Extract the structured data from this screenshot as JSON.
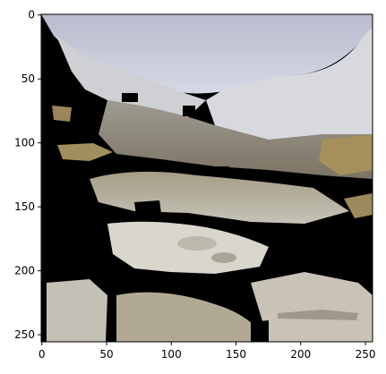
{
  "figure": {
    "image_description": "",
    "x_axis": {
      "ticks": [
        "0",
        "50",
        "100",
        "150",
        "200",
        "250"
      ],
      "tick_values": [
        0,
        50,
        100,
        150,
        200,
        250
      ],
      "range": [
        -0.5,
        255.5
      ]
    },
    "y_axis": {
      "ticks": [
        "0",
        "50",
        "100",
        "150",
        "200",
        "250"
      ],
      "tick_values": [
        0,
        50,
        100,
        150,
        200,
        250
      ],
      "range": [
        -0.5,
        255.5
      ],
      "inverted": true
    },
    "colors": {
      "sky": "#c9ccdc",
      "snow": "#e4e6ee",
      "rock": "#8b8472",
      "grass": "#a28e5c",
      "water": "#b7b4a6",
      "mask": "#000000",
      "frame": "#000000"
    }
  },
  "chart_data": {
    "type": "heatmap",
    "title": "",
    "xlabel": "",
    "ylabel": "",
    "xlim": [
      -0.5,
      255.5
    ],
    "ylim": [
      255.5,
      -0.5
    ],
    "x_ticks": [
      0,
      50,
      100,
      150,
      200,
      250
    ],
    "y_ticks": [
      0,
      50,
      100,
      150,
      200,
      250
    ],
    "grid": false,
    "legend": "none"
  }
}
